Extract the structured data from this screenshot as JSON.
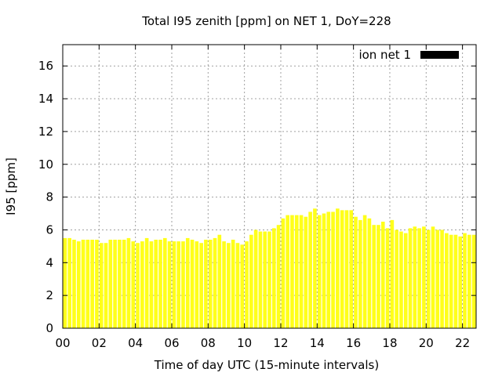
{
  "chart_data": {
    "type": "bar",
    "title": "Total I95 zenith [ppm] on NET 1, DoY=228",
    "xlabel": "Time of day UTC (15-minute intervals)",
    "ylabel": "I95 [ppm]",
    "ylim": [
      0,
      17.3
    ],
    "xlim": [
      0,
      22.75
    ],
    "yticks": [
      0,
      2,
      4,
      6,
      8,
      10,
      12,
      14,
      16
    ],
    "xticks": [
      0,
      2,
      4,
      6,
      8,
      10,
      12,
      14,
      16,
      18,
      20,
      22
    ],
    "xtick_labels": [
      "00",
      "02",
      "04",
      "06",
      "08",
      "10",
      "12",
      "14",
      "16",
      "18",
      "20",
      "22"
    ],
    "grid": true,
    "legend_position": "top-right",
    "bar_color": "#ffff1a",
    "legend_color": "#000000",
    "series": [
      {
        "name": "ion net 1",
        "x_start": 0,
        "x_step": 0.25,
        "values": [
          5.5,
          5.5,
          5.4,
          5.3,
          5.4,
          5.4,
          5.4,
          5.4,
          5.2,
          5.2,
          5.4,
          5.4,
          5.4,
          5.4,
          5.5,
          5.3,
          5.2,
          5.3,
          5.5,
          5.3,
          5.4,
          5.4,
          5.5,
          5.3,
          5.3,
          5.3,
          5.3,
          5.5,
          5.4,
          5.3,
          5.2,
          5.4,
          5.4,
          5.5,
          5.7,
          5.3,
          5.2,
          5.4,
          5.2,
          5.1,
          5.3,
          5.7,
          6.0,
          5.9,
          5.9,
          5.9,
          6.1,
          6.3,
          6.7,
          6.9,
          6.9,
          6.9,
          6.9,
          6.8,
          7.1,
          7.3,
          6.9,
          7.0,
          7.1,
          7.1,
          7.3,
          7.2,
          7.2,
          7.2,
          6.8,
          6.6,
          6.9,
          6.7,
          6.3,
          6.3,
          6.5,
          6.1,
          6.6,
          6.0,
          5.9,
          5.8,
          6.1,
          6.2,
          6.1,
          6.2,
          6.0,
          6.2,
          6.0,
          6.0,
          5.8,
          5.7,
          5.7,
          5.6,
          5.8,
          5.7,
          5.7
        ]
      }
    ]
  }
}
